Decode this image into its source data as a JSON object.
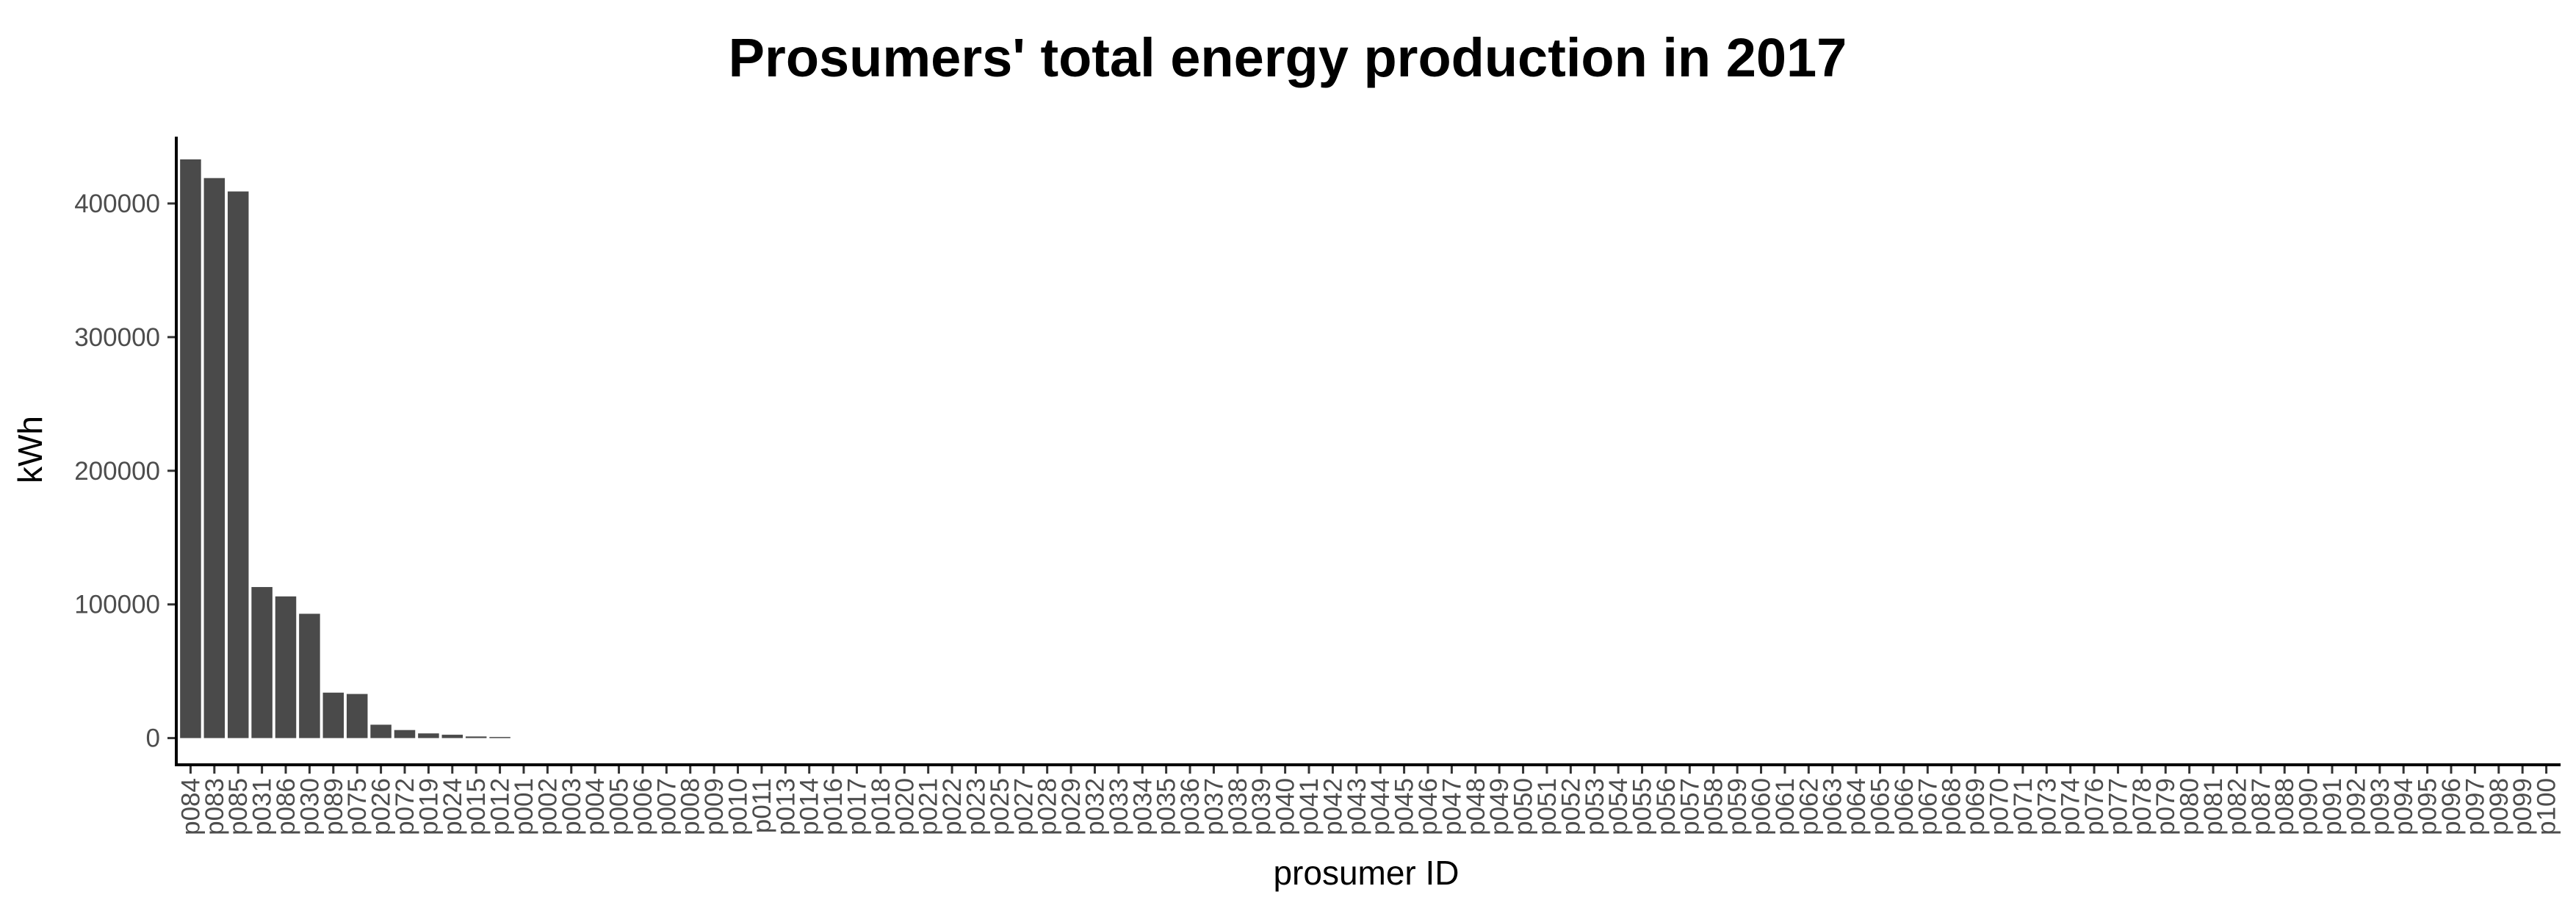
{
  "chart_data": {
    "type": "bar",
    "title": "Prosumers' total energy production in 2017",
    "xlabel": "prosumer ID",
    "ylabel": "kWh",
    "ylim": [
      -20000,
      450000
    ],
    "yticks": [
      0,
      100000,
      200000,
      300000,
      400000
    ],
    "ytick_labels": [
      "0",
      "100000",
      "200000",
      "300000",
      "400000"
    ],
    "grid": false,
    "bar_color": "#4a4a4a",
    "categories": [
      "p084",
      "p083",
      "p085",
      "p031",
      "p086",
      "p030",
      "p089",
      "p075",
      "p026",
      "p072",
      "p019",
      "p024",
      "p015",
      "p012",
      "p001",
      "p002",
      "p003",
      "p004",
      "p005",
      "p006",
      "p007",
      "p008",
      "p009",
      "p010",
      "p011",
      "p013",
      "p014",
      "p016",
      "p017",
      "p018",
      "p020",
      "p021",
      "p022",
      "p023",
      "p025",
      "p027",
      "p028",
      "p029",
      "p032",
      "p033",
      "p034",
      "p035",
      "p036",
      "p037",
      "p038",
      "p039",
      "p040",
      "p041",
      "p042",
      "p043",
      "p044",
      "p045",
      "p046",
      "p047",
      "p048",
      "p049",
      "p050",
      "p051",
      "p052",
      "p053",
      "p054",
      "p055",
      "p056",
      "p057",
      "p058",
      "p059",
      "p060",
      "p061",
      "p062",
      "p063",
      "p064",
      "p065",
      "p066",
      "p067",
      "p068",
      "p069",
      "p070",
      "p071",
      "p073",
      "p074",
      "p076",
      "p077",
      "p078",
      "p079",
      "p080",
      "p081",
      "p082",
      "p087",
      "p088",
      "p090",
      "p091",
      "p092",
      "p093",
      "p094",
      "p095",
      "p096",
      "p097",
      "p098",
      "p099",
      "p100"
    ],
    "values": [
      433000,
      419000,
      409000,
      113000,
      106000,
      93000,
      34000,
      33000,
      10000,
      6000,
      3500,
      2500,
      1200,
      800,
      0,
      0,
      0,
      0,
      0,
      0,
      0,
      0,
      0,
      0,
      0,
      0,
      0,
      0,
      0,
      0,
      0,
      0,
      0,
      0,
      0,
      0,
      0,
      0,
      0,
      0,
      0,
      0,
      0,
      0,
      0,
      0,
      0,
      0,
      0,
      0,
      0,
      0,
      0,
      0,
      0,
      0,
      0,
      0,
      0,
      0,
      0,
      0,
      0,
      0,
      0,
      0,
      0,
      0,
      0,
      0,
      0,
      0,
      0,
      0,
      0,
      0,
      0,
      0,
      0,
      0,
      0,
      0,
      0,
      0,
      0,
      0,
      0,
      0,
      0,
      0,
      0,
      0,
      0,
      0,
      0,
      0,
      0,
      0,
      0,
      0
    ]
  }
}
